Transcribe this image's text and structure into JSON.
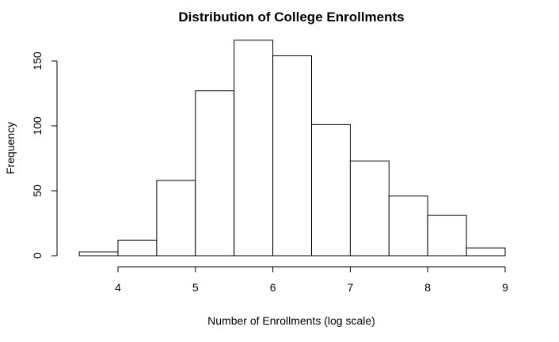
{
  "chart_data": {
    "type": "bar",
    "title": "Distribution of College Enrollments",
    "xlabel": "Number of Enrollments (log scale)",
    "ylabel": "Frequency",
    "bins": [
      {
        "x0": 3.5,
        "x1": 4.0,
        "count": 3
      },
      {
        "x0": 4.0,
        "x1": 4.5,
        "count": 12
      },
      {
        "x0": 4.5,
        "x1": 5.0,
        "count": 58
      },
      {
        "x0": 5.0,
        "x1": 5.5,
        "count": 127
      },
      {
        "x0": 5.5,
        "x1": 6.0,
        "count": 166
      },
      {
        "x0": 6.0,
        "x1": 6.5,
        "count": 154
      },
      {
        "x0": 6.5,
        "x1": 7.0,
        "count": 101
      },
      {
        "x0": 7.0,
        "x1": 7.5,
        "count": 73
      },
      {
        "x0": 7.5,
        "x1": 8.0,
        "count": 46
      },
      {
        "x0": 8.0,
        "x1": 8.5,
        "count": 31
      },
      {
        "x0": 8.5,
        "x1": 9.0,
        "count": 6
      }
    ],
    "x_ticks": [
      "4",
      "5",
      "6",
      "7",
      "8",
      "9"
    ],
    "y_ticks": [
      "0",
      "50",
      "100",
      "150"
    ],
    "xlim": [
      3.5,
      9
    ],
    "ylim": [
      0,
      166
    ],
    "grid": false,
    "colors": {
      "bar_fill": "#ffffff",
      "bar_stroke": "#000000"
    }
  }
}
